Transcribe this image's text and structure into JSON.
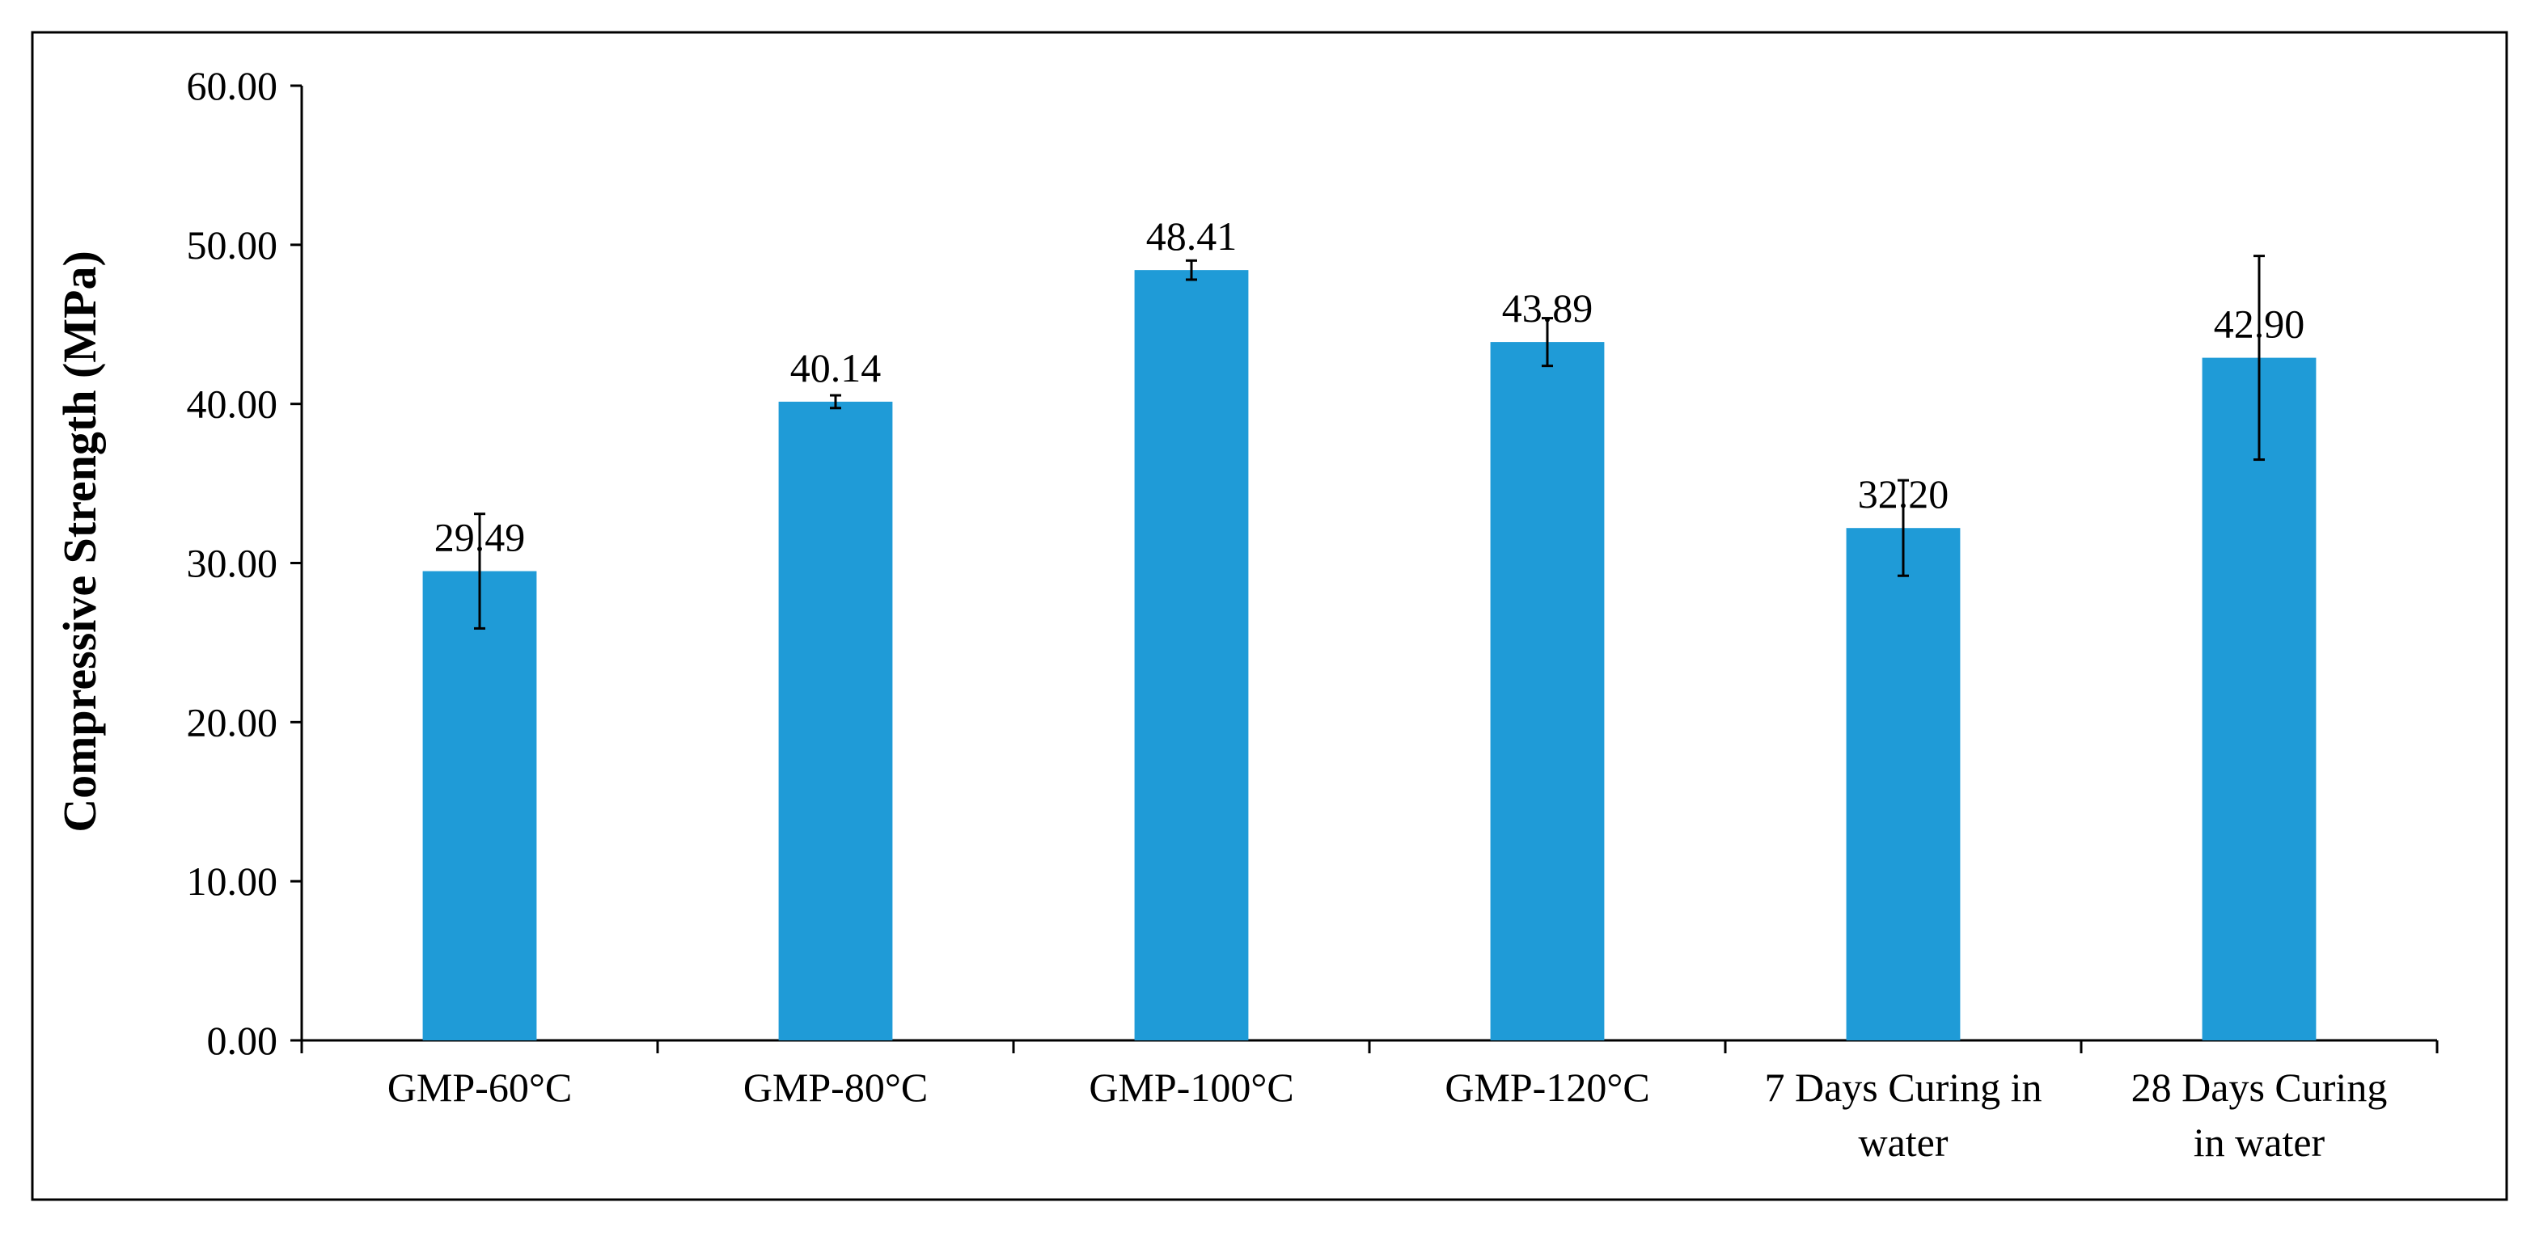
{
  "chart_data": {
    "type": "bar",
    "title": "",
    "xlabel": "",
    "ylabel": "Compressive Strength (MPa)",
    "ylim": [
      0,
      60
    ],
    "y_ticks": [
      "0.00",
      "10.00",
      "20.00",
      "30.00",
      "40.00",
      "50.00",
      "60.00"
    ],
    "y_tick_values": [
      0,
      10,
      20,
      30,
      40,
      50,
      60
    ],
    "grid": false,
    "legend": "none",
    "bar_color": "#1f9bd7",
    "categories": [
      [
        "GMP-60°C"
      ],
      [
        "GMP-80°C"
      ],
      [
        "GMP-100°C"
      ],
      [
        "GMP-120°C"
      ],
      [
        "7 Days Curing in",
        "water"
      ],
      [
        "28 Days Curing",
        "in water"
      ]
    ],
    "values": [
      29.49,
      40.14,
      48.41,
      43.89,
      32.2,
      42.9
    ],
    "value_labels": [
      "29.49",
      "40.14",
      "48.41",
      "43.89",
      "32.20",
      "42.90"
    ],
    "error_bars": [
      3.6,
      0.4,
      0.6,
      1.5,
      3.0,
      6.4
    ]
  }
}
